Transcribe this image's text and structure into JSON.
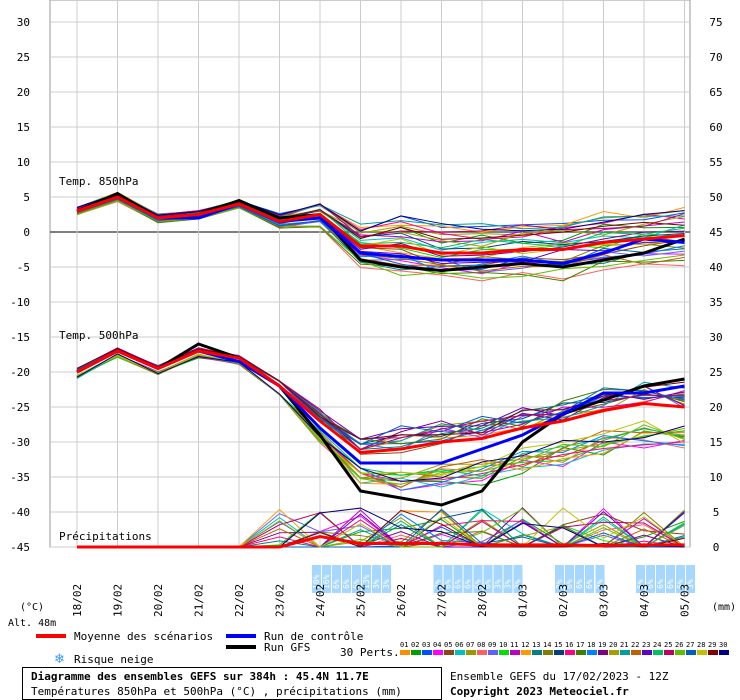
{
  "chart_data": {
    "type": "line",
    "x_dates": [
      "18/02",
      "19/02",
      "20/02",
      "21/02",
      "22/02",
      "23/02",
      "24/02",
      "25/02",
      "26/02",
      "27/02",
      "28/02",
      "01/03",
      "02/03",
      "03/03",
      "04/03",
      "05/03"
    ],
    "left_axis": {
      "label": "(°C)",
      "ticks": [
        30,
        25,
        20,
        15,
        10,
        5,
        0,
        -5,
        -10,
        -15,
        -20,
        -25,
        -30,
        -35,
        -40,
        -45
      ],
      "ylim": [
        -45,
        30
      ]
    },
    "right_axis": {
      "label": "(mm)",
      "ticks": [
        75,
        70,
        65,
        60,
        55,
        50,
        45,
        40,
        35,
        30,
        25,
        20,
        15,
        10,
        5,
        0
      ],
      "ylim": [
        0,
        75
      ]
    },
    "section_labels": {
      "t850": "Temp. 850hPa",
      "t500": "Temp. 500hPa",
      "precip": "Précipitations"
    },
    "altitude_label": "Alt. 48m",
    "series": [
      {
        "name": "Moyenne des scénarios",
        "color": "#ff0000",
        "t850_mean": [
          3.0,
          5.0,
          2.0,
          2.5,
          4.0,
          1.5,
          2.5,
          -2.0,
          -2.0,
          -3.0,
          -3.0,
          -2.5,
          -2.5,
          -1.5,
          -1.0,
          -0.5
        ],
        "t500_mean": [
          -20,
          -17,
          -19.5,
          -17,
          -18,
          -22,
          -27,
          -31.5,
          -31,
          -30,
          -29.5,
          -28,
          -27,
          -25.5,
          -24.5,
          -25
        ]
      },
      {
        "name": "Run de contrôle",
        "color": "#0000ff",
        "t850": [
          3.0,
          5.0,
          2.0,
          2.0,
          4.0,
          1.5,
          2.0,
          -3.0,
          -3.5,
          -4.0,
          -4.0,
          -4.0,
          -4.5,
          -3.0,
          -1.0,
          -1.5
        ],
        "t500": [
          -20,
          -17,
          -19.5,
          -17,
          -18.5,
          -22,
          -28,
          -33,
          -33,
          -33,
          -31,
          -29,
          -26,
          -23,
          -23,
          -22
        ]
      },
      {
        "name": "Run GFS",
        "color": "#000000",
        "t850": [
          3.0,
          5.5,
          2.0,
          2.5,
          4.5,
          2.0,
          2.5,
          -4.0,
          -5.0,
          -5.5,
          -5.0,
          -4.5,
          -5.0,
          -4.0,
          -3.0,
          -1.0
        ],
        "t500": [
          -20,
          -17,
          -19.5,
          -16,
          -18,
          -22,
          -29,
          -37,
          -38,
          -39,
          -37,
          -30,
          -26,
          -24,
          -22,
          -21
        ]
      }
    ],
    "precip_mean": [
      0,
      0,
      0,
      0,
      0,
      0,
      1.5,
      0.5,
      0.5,
      0.5,
      0.3,
      0.3,
      0.3,
      0.2,
      0.3,
      0.3
    ],
    "snow_risk": {
      "label": "Risque neige",
      "groups": [
        {
          "date_index": 6,
          "values": [
            "10%",
            "16%",
            "6%",
            "6%",
            "6%",
            "13%",
            "3%",
            "3%"
          ]
        },
        {
          "date_index": 9,
          "values": [
            "3%",
            "6%",
            "6%",
            "6%",
            "6%",
            "6%",
            "3%",
            "3%",
            "3%"
          ]
        },
        {
          "date_index": 12,
          "values": [
            "3%",
            "6%",
            "6%",
            "6%"
          ]
        },
        {
          "date_index": 13,
          "values": [
            "3%"
          ]
        },
        {
          "date_index": 14,
          "values": [
            "6%",
            "6%",
            "6%",
            "6%",
            "6%",
            "3%"
          ]
        }
      ]
    },
    "perturbations": {
      "label": "30 Perts.",
      "ids": [
        "01",
        "02",
        "03",
        "04",
        "05",
        "06",
        "07",
        "08",
        "09",
        "10",
        "11",
        "12",
        "13",
        "14",
        "15",
        "16",
        "17",
        "18",
        "19",
        "20",
        "21",
        "22",
        "23",
        "24",
        "25",
        "26",
        "27",
        "28",
        "29",
        "30"
      ],
      "colors": [
        "#ff8c00",
        "#00a000",
        "#0050ff",
        "#ff00ff",
        "#8b4513",
        "#00c0c0",
        "#999900",
        "#ff6060",
        "#6060ff",
        "#00e000",
        "#c000c0",
        "#ff9900",
        "#008080",
        "#808000",
        "#004080",
        "#ff0080",
        "#408000",
        "#0080ff",
        "#800080",
        "#a0a000",
        "#00a0a0",
        "#c06000",
        "#6000c0",
        "#00c060",
        "#c00060",
        "#60c000",
        "#0060c0",
        "#c0c000",
        "#800000",
        "#000080"
      ]
    },
    "legend": {
      "mean": "Moyenne des scénarios",
      "control": "Run de contrôle",
      "gfs": "Run GFS",
      "snow": "Risque neige"
    }
  },
  "footer": {
    "title": "Diagramme des ensembles GEFS sur 384h : 45.4N 11.7E",
    "subtitle": "Températures 850hPa et 500hPa (°C) , précipitations (mm)",
    "ensemble": "Ensemble GEFS du 17/02/2023 - 12Z",
    "copyright": "Copyright 2023 Meteociel.fr"
  }
}
